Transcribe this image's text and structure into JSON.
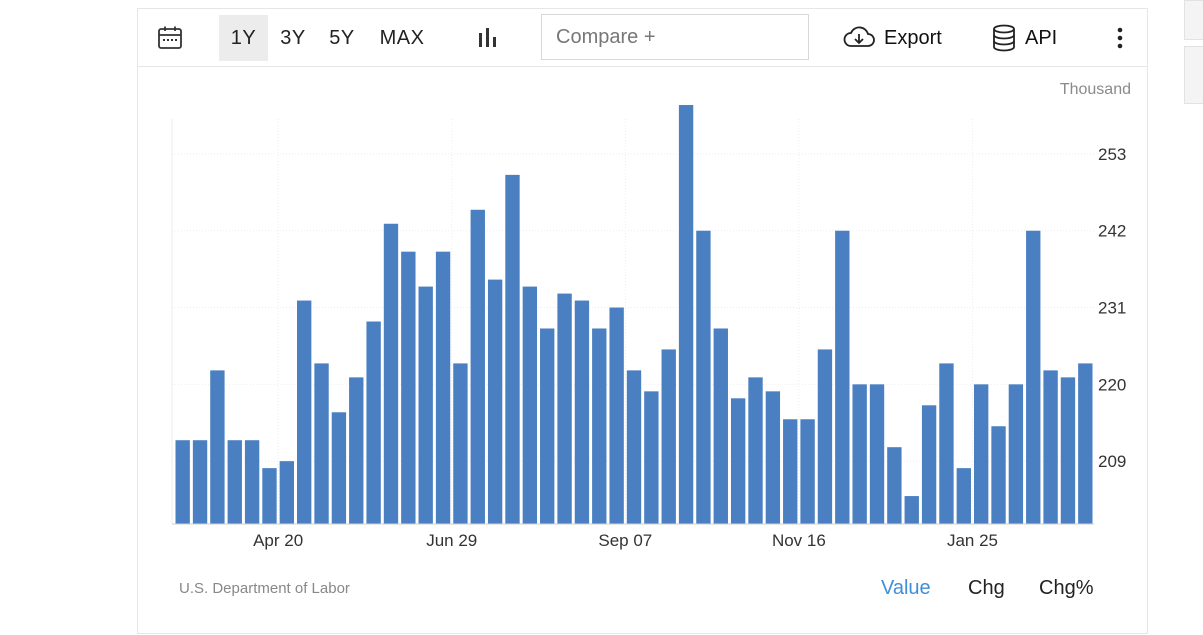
{
  "toolbar": {
    "ranges": [
      "1Y",
      "3Y",
      "5Y",
      "MAX"
    ],
    "active_range": "1Y",
    "compare_placeholder": "Compare +",
    "export_label": "Export",
    "api_label": "API"
  },
  "footer": {
    "source": "U.S. Department of Labor",
    "modes": [
      "Value",
      "Chg",
      "Chg%"
    ],
    "active_mode": "Value"
  },
  "colors": {
    "bar": "#4a7fc1",
    "active_mode": "#3f8fd8"
  },
  "chart_data": {
    "type": "bar",
    "title": "",
    "unit_label": "Thousand",
    "ylim": [
      200,
      258
    ],
    "yticks": [
      209,
      220,
      231,
      242,
      253
    ],
    "xtick_labels": [
      {
        "label": "Apr 20",
        "index": 5.5
      },
      {
        "label": "Jun 29",
        "index": 15.5
      },
      {
        "label": "Sep 07",
        "index": 25.5
      },
      {
        "label": "Nov 16",
        "index": 35.5
      },
      {
        "label": "Jan 25",
        "index": 45.5
      }
    ],
    "grid": true,
    "values": [
      212,
      212,
      222,
      212,
      212,
      208,
      209,
      232,
      223,
      216,
      221,
      229,
      243,
      239,
      234,
      239,
      223,
      245,
      235,
      250,
      234,
      228,
      233,
      232,
      228,
      231,
      222,
      219,
      225,
      260,
      242,
      228,
      218,
      221,
      219,
      215,
      215,
      225,
      242,
      220,
      220,
      211,
      204,
      217,
      223,
      208,
      220,
      214,
      220,
      242,
      222,
      221,
      223
    ]
  }
}
